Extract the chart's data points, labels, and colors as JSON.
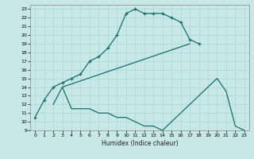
{
  "xlabel": "Humidex (Indice chaleur)",
  "background_color": "#c8e8e8",
  "grid_color": "#a8d8d8",
  "line_color": "#1a6b6b",
  "xlim": [
    -0.5,
    23.5
  ],
  "ylim": [
    9,
    23.5
  ],
  "xticks": [
    0,
    1,
    2,
    3,
    4,
    5,
    6,
    7,
    8,
    9,
    10,
    11,
    12,
    13,
    14,
    15,
    16,
    17,
    18,
    19,
    20,
    21,
    22,
    23
  ],
  "yticks": [
    9,
    10,
    11,
    12,
    13,
    14,
    15,
    16,
    17,
    18,
    19,
    20,
    21,
    22,
    23
  ],
  "series": [
    {
      "x": [
        0,
        1,
        2,
        3,
        4,
        5,
        6,
        7,
        8,
        9,
        10,
        11,
        12,
        13,
        14,
        15,
        16,
        17,
        18
      ],
      "y": [
        10.5,
        12.5,
        14.0,
        14.5,
        15.0,
        15.5,
        17.0,
        17.5,
        18.5,
        20.0,
        22.5,
        23.0,
        22.5,
        22.5,
        22.5,
        22.0,
        21.5,
        19.5,
        19.0
      ],
      "marker": true
    },
    {
      "x": [
        3,
        17
      ],
      "y": [
        14.0,
        19.0
      ],
      "marker": false
    },
    {
      "x": [
        2,
        3,
        4,
        5,
        6,
        7,
        8,
        9,
        10,
        11,
        12,
        13,
        14,
        20,
        21,
        22,
        23
      ],
      "y": [
        12.0,
        14.0,
        11.5,
        11.5,
        11.5,
        11.0,
        11.0,
        10.5,
        10.5,
        10.0,
        9.5,
        9.5,
        9.0,
        15.0,
        13.5,
        9.5,
        9.0
      ],
      "marker": false
    }
  ]
}
